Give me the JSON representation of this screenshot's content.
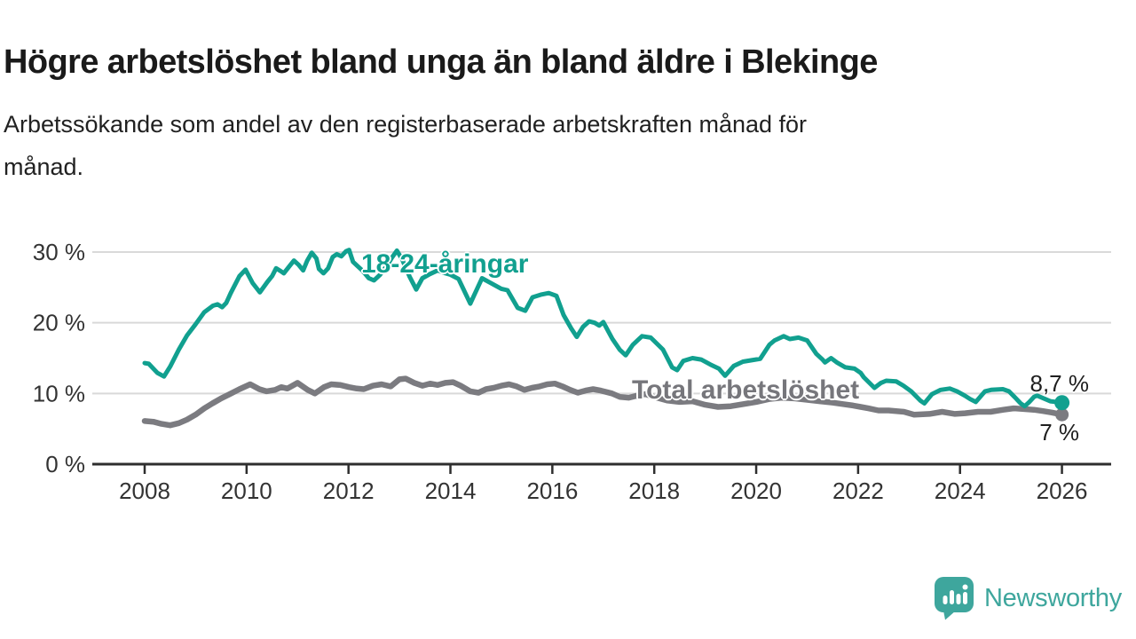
{
  "title": "Högre arbetslöshet bland unga än bland äldre i Blekinge",
  "subtitle_lines": [
    "Arbetssökande som andel av den registerbaserade arbetskraften månad för",
    "månad."
  ],
  "branding": {
    "logo_text": "Newsworthy",
    "logo_color": "#3ea69d"
  },
  "chart_data": {
    "type": "line",
    "title": "Högre arbetslöshet bland unga än bland äldre i Blekinge",
    "subtitle": "Arbetssökande som andel av den registerbaserade arbetskraften månad för månad.",
    "grid": true,
    "legend_position": "inline-labels",
    "x_axis": {
      "range_years": [
        2007,
        2027
      ],
      "ticks": [
        {
          "label": "2008",
          "year": 2008
        },
        {
          "label": "2010",
          "year": 2010
        },
        {
          "label": "2012",
          "year": 2012
        },
        {
          "label": "2014",
          "year": 2014
        },
        {
          "label": "2016",
          "year": 2016
        },
        {
          "label": "2018",
          "year": 2018
        },
        {
          "label": "2020",
          "year": 2020
        },
        {
          "label": "2022",
          "year": 2022
        },
        {
          "label": "2024",
          "year": 2024
        },
        {
          "label": "2026",
          "year": 2026
        }
      ]
    },
    "y_axis": {
      "unit": "%",
      "range": [
        0,
        32
      ],
      "ticks": [
        {
          "label": "0 %",
          "value": 0
        },
        {
          "label": "10 %",
          "value": 10
        },
        {
          "label": "20 %",
          "value": 20
        },
        {
          "label": "30 %",
          "value": 30
        }
      ]
    },
    "series": [
      {
        "name": "18-24-åringar",
        "color": "#11a08f",
        "line_width": 5,
        "end_dot": true,
        "dot_radius": 8.5,
        "end_label": "8,7 %",
        "last_value": 8.7,
        "points": [
          [
            2008.0,
            14.3
          ],
          [
            2008.08,
            14.2
          ],
          [
            2008.25,
            12.9
          ],
          [
            2008.38,
            12.4
          ],
          [
            2008.5,
            13.8
          ],
          [
            2008.67,
            16.2
          ],
          [
            2008.83,
            18.2
          ],
          [
            2009.0,
            19.8
          ],
          [
            2009.17,
            21.5
          ],
          [
            2009.34,
            22.4
          ],
          [
            2009.43,
            22.6
          ],
          [
            2009.52,
            22.2
          ],
          [
            2009.6,
            22.8
          ],
          [
            2009.69,
            24.2
          ],
          [
            2009.86,
            26.6
          ],
          [
            2009.98,
            27.5
          ],
          [
            2010.12,
            25.6
          ],
          [
            2010.26,
            24.3
          ],
          [
            2010.41,
            25.8
          ],
          [
            2010.5,
            26.6
          ],
          [
            2010.58,
            27.7
          ],
          [
            2010.67,
            27.3
          ],
          [
            2010.73,
            27.0
          ],
          [
            2010.84,
            28.0
          ],
          [
            2010.93,
            28.8
          ],
          [
            2011.02,
            28.2
          ],
          [
            2011.11,
            27.4
          ],
          [
            2011.19,
            28.8
          ],
          [
            2011.28,
            29.9
          ],
          [
            2011.37,
            29.1
          ],
          [
            2011.42,
            27.6
          ],
          [
            2011.51,
            27.0
          ],
          [
            2011.6,
            27.7
          ],
          [
            2011.69,
            29.3
          ],
          [
            2011.77,
            29.7
          ],
          [
            2011.86,
            29.4
          ],
          [
            2011.95,
            30.1
          ],
          [
            2012.01,
            30.3
          ],
          [
            2012.09,
            28.6
          ],
          [
            2012.18,
            28.0
          ],
          [
            2012.27,
            27.4
          ],
          [
            2012.4,
            26.3
          ],
          [
            2012.5,
            26.0
          ],
          [
            2012.62,
            26.8
          ],
          [
            2012.75,
            28.0
          ],
          [
            2012.85,
            29.2
          ],
          [
            2012.95,
            30.2
          ],
          [
            2013.05,
            29.0
          ],
          [
            2013.2,
            26.5
          ],
          [
            2013.33,
            24.7
          ],
          [
            2013.45,
            26.3
          ],
          [
            2013.6,
            26.9
          ],
          [
            2013.75,
            27.4
          ],
          [
            2013.9,
            27.0
          ],
          [
            2014.0,
            26.8
          ],
          [
            2014.16,
            26.2
          ],
          [
            2014.39,
            22.7
          ],
          [
            2014.62,
            26.3
          ],
          [
            2014.77,
            25.7
          ],
          [
            2015.0,
            24.8
          ],
          [
            2015.12,
            24.6
          ],
          [
            2015.32,
            22.1
          ],
          [
            2015.47,
            21.7
          ],
          [
            2015.61,
            23.6
          ],
          [
            2015.79,
            24.0
          ],
          [
            2015.93,
            24.2
          ],
          [
            2016.08,
            23.8
          ],
          [
            2016.22,
            21.1
          ],
          [
            2016.37,
            19.2
          ],
          [
            2016.48,
            18.0
          ],
          [
            2016.6,
            19.4
          ],
          [
            2016.72,
            20.2
          ],
          [
            2016.83,
            20.0
          ],
          [
            2016.92,
            19.6
          ],
          [
            2017.0,
            20.1
          ],
          [
            2017.18,
            17.7
          ],
          [
            2017.32,
            16.2
          ],
          [
            2017.44,
            15.4
          ],
          [
            2017.58,
            16.9
          ],
          [
            2017.76,
            18.1
          ],
          [
            2017.93,
            17.9
          ],
          [
            2018.17,
            16.2
          ],
          [
            2018.35,
            13.7
          ],
          [
            2018.45,
            13.3
          ],
          [
            2018.57,
            14.6
          ],
          [
            2018.75,
            15.0
          ],
          [
            2018.92,
            14.8
          ],
          [
            2019.1,
            14.1
          ],
          [
            2019.27,
            13.5
          ],
          [
            2019.39,
            12.5
          ],
          [
            2019.56,
            13.9
          ],
          [
            2019.74,
            14.5
          ],
          [
            2019.91,
            14.7
          ],
          [
            2020.08,
            14.9
          ],
          [
            2020.26,
            16.9
          ],
          [
            2020.36,
            17.5
          ],
          [
            2020.54,
            18.1
          ],
          [
            2020.66,
            17.7
          ],
          [
            2020.83,
            17.9
          ],
          [
            2021.0,
            17.5
          ],
          [
            2021.18,
            15.6
          ],
          [
            2021.3,
            14.8
          ],
          [
            2021.35,
            14.4
          ],
          [
            2021.47,
            15.0
          ],
          [
            2021.58,
            14.4
          ],
          [
            2021.75,
            13.7
          ],
          [
            2021.93,
            13.5
          ],
          [
            2022.05,
            12.9
          ],
          [
            2022.11,
            12.3
          ],
          [
            2022.32,
            10.8
          ],
          [
            2022.45,
            11.5
          ],
          [
            2022.55,
            11.8
          ],
          [
            2022.75,
            11.7
          ],
          [
            2022.89,
            11.1
          ],
          [
            2023.04,
            10.3
          ],
          [
            2023.22,
            9.0
          ],
          [
            2023.3,
            8.6
          ],
          [
            2023.45,
            9.9
          ],
          [
            2023.62,
            10.5
          ],
          [
            2023.8,
            10.7
          ],
          [
            2023.94,
            10.3
          ],
          [
            2024.09,
            9.7
          ],
          [
            2024.2,
            9.2
          ],
          [
            2024.31,
            8.8
          ],
          [
            2024.49,
            10.3
          ],
          [
            2024.61,
            10.5
          ],
          [
            2024.84,
            10.6
          ],
          [
            2024.96,
            10.3
          ],
          [
            2025.07,
            9.5
          ],
          [
            2025.19,
            8.6
          ],
          [
            2025.27,
            8.2
          ],
          [
            2025.36,
            8.8
          ],
          [
            2025.45,
            9.5
          ],
          [
            2025.51,
            9.7
          ],
          [
            2025.77,
            8.9
          ],
          [
            2026.0,
            8.7
          ]
        ]
      },
      {
        "name": "Total arbetslöshet",
        "color": "#7b7b80",
        "line_width": 6.5,
        "end_dot": true,
        "dot_radius": 7.5,
        "end_label": "7 %",
        "last_value": 7.0,
        "points": [
          [
            2008.0,
            6.1
          ],
          [
            2008.17,
            6.0
          ],
          [
            2008.33,
            5.7
          ],
          [
            2008.5,
            5.5
          ],
          [
            2008.67,
            5.8
          ],
          [
            2008.83,
            6.3
          ],
          [
            2009.0,
            7.0
          ],
          [
            2009.17,
            7.9
          ],
          [
            2009.33,
            8.6
          ],
          [
            2009.5,
            9.3
          ],
          [
            2009.67,
            9.9
          ],
          [
            2009.86,
            10.6
          ],
          [
            2010.07,
            11.3
          ],
          [
            2010.25,
            10.6
          ],
          [
            2010.39,
            10.3
          ],
          [
            2010.56,
            10.5
          ],
          [
            2010.68,
            10.9
          ],
          [
            2010.8,
            10.7
          ],
          [
            2011.0,
            11.5
          ],
          [
            2011.2,
            10.5
          ],
          [
            2011.34,
            10.0
          ],
          [
            2011.52,
            10.9
          ],
          [
            2011.66,
            11.3
          ],
          [
            2011.84,
            11.2
          ],
          [
            2012.01,
            10.9
          ],
          [
            2012.16,
            10.7
          ],
          [
            2012.3,
            10.6
          ],
          [
            2012.48,
            11.1
          ],
          [
            2012.65,
            11.3
          ],
          [
            2012.83,
            11.0
          ],
          [
            2013.0,
            12.0
          ],
          [
            2013.12,
            12.1
          ],
          [
            2013.29,
            11.5
          ],
          [
            2013.45,
            11.1
          ],
          [
            2013.6,
            11.4
          ],
          [
            2013.75,
            11.2
          ],
          [
            2013.9,
            11.5
          ],
          [
            2014.05,
            11.6
          ],
          [
            2014.2,
            11.1
          ],
          [
            2014.39,
            10.3
          ],
          [
            2014.55,
            10.1
          ],
          [
            2014.7,
            10.6
          ],
          [
            2014.85,
            10.8
          ],
          [
            2015.0,
            11.1
          ],
          [
            2015.15,
            11.3
          ],
          [
            2015.3,
            11.0
          ],
          [
            2015.45,
            10.5
          ],
          [
            2015.6,
            10.8
          ],
          [
            2015.75,
            11.0
          ],
          [
            2015.9,
            11.3
          ],
          [
            2016.05,
            11.4
          ],
          [
            2016.2,
            11.0
          ],
          [
            2016.35,
            10.5
          ],
          [
            2016.5,
            10.1
          ],
          [
            2016.65,
            10.4
          ],
          [
            2016.8,
            10.6
          ],
          [
            2016.95,
            10.4
          ],
          [
            2017.17,
            10.0
          ],
          [
            2017.33,
            9.5
          ],
          [
            2017.5,
            9.4
          ],
          [
            2017.67,
            9.7
          ],
          [
            2017.83,
            9.9
          ],
          [
            2018.0,
            9.5
          ],
          [
            2018.25,
            9.0
          ],
          [
            2018.5,
            8.8
          ],
          [
            2018.75,
            8.9
          ],
          [
            2019.0,
            8.4
          ],
          [
            2019.25,
            8.1
          ],
          [
            2019.5,
            8.2
          ],
          [
            2019.75,
            8.5
          ],
          [
            2020.0,
            8.8
          ],
          [
            2020.25,
            9.2
          ],
          [
            2020.5,
            9.4
          ],
          [
            2020.75,
            9.3
          ],
          [
            2021.0,
            9.1
          ],
          [
            2021.25,
            8.9
          ],
          [
            2021.5,
            8.7
          ],
          [
            2021.7,
            8.5
          ],
          [
            2021.9,
            8.3
          ],
          [
            2022.05,
            8.1
          ],
          [
            2022.2,
            7.9
          ],
          [
            2022.4,
            7.6
          ],
          [
            2022.6,
            7.6
          ],
          [
            2022.9,
            7.4
          ],
          [
            2023.1,
            7.0
          ],
          [
            2023.4,
            7.1
          ],
          [
            2023.65,
            7.4
          ],
          [
            2023.9,
            7.1
          ],
          [
            2024.1,
            7.2
          ],
          [
            2024.35,
            7.4
          ],
          [
            2024.6,
            7.4
          ],
          [
            2024.85,
            7.7
          ],
          [
            2025.05,
            7.9
          ],
          [
            2025.25,
            7.8
          ],
          [
            2025.45,
            7.7
          ],
          [
            2025.63,
            7.5
          ],
          [
            2025.8,
            7.3
          ],
          [
            2026.0,
            7.0
          ]
        ]
      }
    ]
  }
}
